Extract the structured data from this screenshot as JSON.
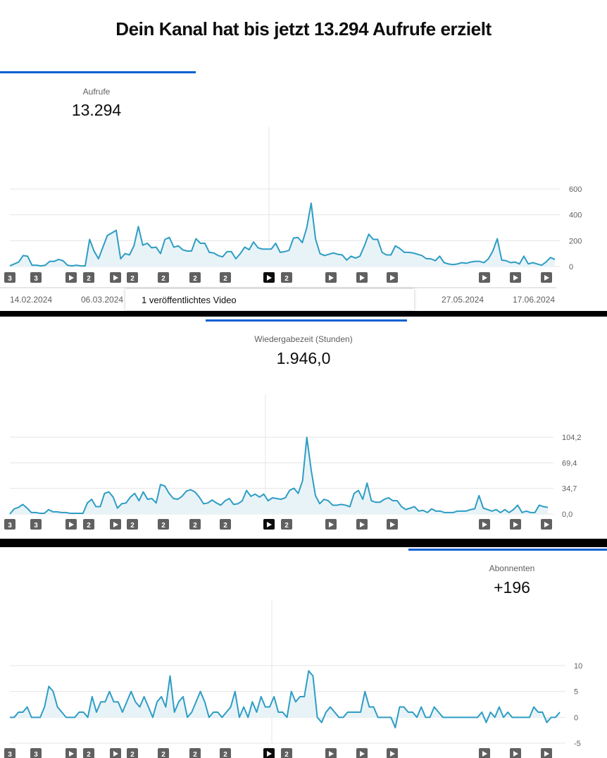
{
  "header": {
    "title": "Dein Kanal hat bis jetzt 13.294 Aufrufe erzielt"
  },
  "tooltip": {
    "text": "1 veröffentlichtes Video"
  },
  "x_axis": {
    "labels": [
      "14.02.2024",
      "06.03.2024",
      "27.05.2024",
      "17.06.2024"
    ]
  },
  "colors": {
    "line": "#2e9dc4",
    "fill": "#e8f3f8",
    "accent": "#065fd4",
    "grid": "#e5e5e5",
    "marker": "#606060",
    "marker_active": "#0d0d0d"
  },
  "markers": [
    {
      "label": "3",
      "icon": ""
    },
    {
      "label": "3",
      "icon": ""
    },
    {
      "label": "",
      "icon": "play-icon"
    },
    {
      "label": "2",
      "icon": ""
    },
    {
      "label": "",
      "icon": "play-icon"
    },
    {
      "label": "2",
      "icon": ""
    },
    {
      "label": "2",
      "icon": ""
    },
    {
      "label": "2",
      "icon": ""
    },
    {
      "label": "2",
      "icon": ""
    },
    {
      "label": "",
      "icon": "play-icon"
    },
    {
      "label": "2",
      "icon": ""
    },
    {
      "label": "",
      "icon": "play-icon"
    },
    {
      "label": "",
      "icon": "play-icon"
    },
    {
      "label": "",
      "icon": "play-icon"
    },
    {
      "label": "",
      "icon": "play-icon"
    },
    {
      "label": "",
      "icon": "play-icon"
    },
    {
      "label": "",
      "icon": "play-icon"
    }
  ],
  "metrics": [
    {
      "label": "Aufrufe",
      "value": "13.294"
    },
    {
      "label": "Wiedergabezeit (Stunden)",
      "value": "1.946,0"
    },
    {
      "label": "Abonnenten",
      "value": "+196"
    }
  ],
  "chart_data": [
    {
      "type": "area",
      "ylim": [
        0,
        600
      ],
      "y_ticks": [
        "600",
        "400",
        "200",
        "0"
      ],
      "values": [
        5,
        20,
        35,
        85,
        80,
        10,
        10,
        5,
        10,
        40,
        40,
        55,
        45,
        10,
        5,
        10,
        5,
        5,
        210,
        120,
        60,
        150,
        240,
        260,
        280,
        60,
        100,
        90,
        160,
        310,
        165,
        180,
        145,
        150,
        100,
        210,
        225,
        150,
        160,
        130,
        120,
        120,
        215,
        180,
        180,
        110,
        105,
        85,
        75,
        115,
        115,
        60,
        100,
        150,
        130,
        190,
        145,
        135,
        135,
        135,
        180,
        110,
        115,
        125,
        220,
        225,
        185,
        300,
        490,
        210,
        100,
        85,
        95,
        105,
        95,
        90,
        50,
        80,
        65,
        80,
        160,
        250,
        210,
        210,
        110,
        90,
        90,
        160,
        140,
        110,
        110,
        105,
        95,
        85,
        60,
        60,
        45,
        80,
        30,
        20,
        15,
        20,
        30,
        25,
        35,
        40,
        40,
        30,
        60,
        120,
        215,
        50,
        45,
        30,
        35,
        20,
        80,
        20,
        30,
        20,
        10,
        35,
        70,
        55
      ]
    },
    {
      "type": "area",
      "ylim": [
        0,
        104.2
      ],
      "y_ticks": [
        "104,2",
        "69,4",
        "34,7",
        "0,0"
      ],
      "values": [
        0,
        7,
        9,
        13,
        8,
        2,
        2,
        1,
        1,
        6,
        3,
        3,
        2,
        2,
        1,
        1,
        1,
        1,
        15,
        20,
        10,
        10,
        28,
        30,
        23,
        8,
        14,
        15,
        23,
        28,
        18,
        30,
        20,
        21,
        15,
        40,
        38,
        28,
        21,
        20,
        24,
        31,
        33,
        30,
        23,
        14,
        15,
        19,
        15,
        12,
        18,
        21,
        13,
        14,
        18,
        32,
        24,
        27,
        23,
        27,
        18,
        22,
        21,
        20,
        22,
        32,
        35,
        28,
        45,
        104,
        60,
        25,
        14,
        20,
        18,
        12,
        12,
        13,
        12,
        10,
        28,
        32,
        20,
        42,
        18,
        16,
        16,
        20,
        22,
        18,
        18,
        10,
        6,
        8,
        10,
        4,
        5,
        2,
        7,
        4,
        4,
        2,
        2,
        2,
        4,
        4,
        4,
        6,
        7,
        25,
        8,
        6,
        4,
        6,
        2,
        6,
        2,
        6,
        12,
        2,
        4,
        2,
        2,
        12,
        10,
        9
      ]
    },
    {
      "type": "line",
      "ylim": [
        -5,
        10
      ],
      "y_ticks": [
        "10",
        "5",
        "0",
        "-5"
      ],
      "values": [
        0,
        0,
        1,
        1,
        2,
        0,
        0,
        0,
        2,
        6,
        5,
        2,
        1,
        0,
        0,
        0,
        1,
        1,
        0,
        4,
        1,
        3,
        3,
        5,
        3,
        3,
        1,
        3,
        5,
        3,
        2,
        4,
        2,
        0,
        3,
        4,
        2,
        8,
        1,
        3,
        4,
        0,
        1,
        3,
        5,
        3,
        0,
        1,
        1,
        0,
        1,
        2,
        5,
        0,
        2,
        0,
        3,
        1,
        4,
        2,
        2,
        4,
        1,
        1,
        0,
        5,
        3,
        4,
        4,
        9,
        8,
        0,
        -1,
        1,
        2,
        1,
        0,
        0,
        1,
        1,
        1,
        1,
        5,
        2,
        2,
        0,
        0,
        0,
        0,
        -2,
        2,
        2,
        1,
        1,
        0,
        2,
        0,
        0,
        2,
        1,
        0,
        0,
        0,
        0,
        0,
        0,
        0,
        0,
        0,
        1,
        -1,
        1,
        0,
        2,
        0,
        1,
        0,
        0,
        0,
        0,
        0,
        2,
        1,
        1,
        -1,
        0,
        0,
        1
      ]
    }
  ]
}
